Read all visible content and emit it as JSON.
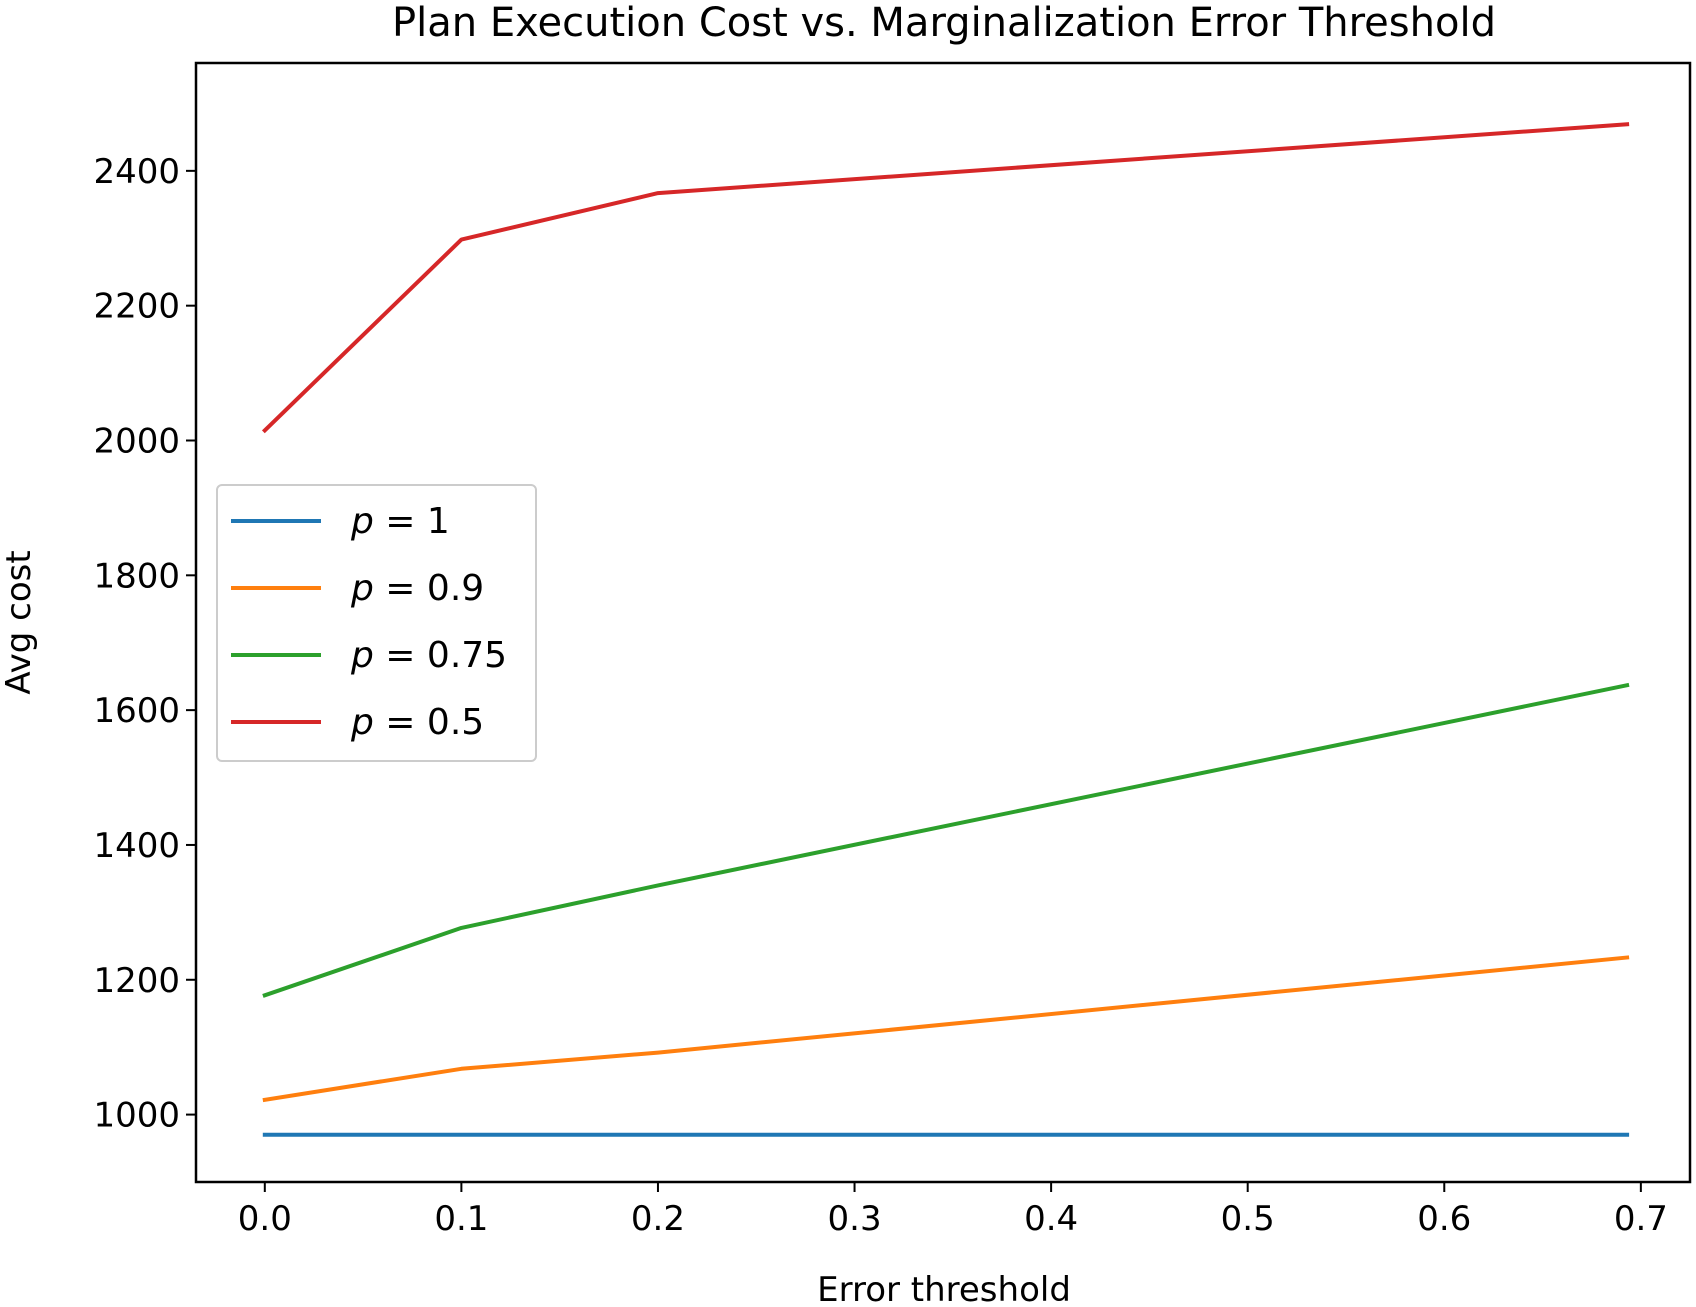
{
  "chart_data": {
    "type": "line",
    "title": "Plan Execution Cost vs. Marginalization Error Threshold",
    "xlabel": "Error threshold",
    "ylabel": "Avg cost",
    "xlim": [
      -0.035,
      0.725
    ],
    "ylim": [
      900,
      2560
    ],
    "xticks": [
      0.0,
      0.1,
      0.2,
      0.3,
      0.4,
      0.5,
      0.6,
      0.7
    ],
    "xtick_labels": [
      "0.0",
      "0.1",
      "0.2",
      "0.3",
      "0.4",
      "0.5",
      "0.6",
      "0.7"
    ],
    "yticks": [
      1000,
      1200,
      1400,
      1600,
      1800,
      2000,
      2200,
      2400
    ],
    "ytick_labels": [
      "1000",
      "1200",
      "1400",
      "1600",
      "1800",
      "2000",
      "2200",
      "2400"
    ],
    "grid": false,
    "legend_position": "center-left",
    "x": [
      0.0,
      0.1,
      0.2,
      0.693
    ],
    "series": [
      {
        "name": "p = 1",
        "legend_var": "p",
        "legend_rest": " = 1",
        "color": "#1f77b4",
        "values": [
          970,
          970,
          970,
          970
        ]
      },
      {
        "name": "p = 0.9",
        "legend_var": "p",
        "legend_rest": " = 0.9",
        "color": "#ff7f0e",
        "values": [
          1022,
          1068,
          1092,
          1233
        ]
      },
      {
        "name": "p = 0.75",
        "legend_var": "p",
        "legend_rest": " = 0.75",
        "color": "#2ca02c",
        "values": [
          1177,
          1277,
          1340,
          1637
        ]
      },
      {
        "name": "p = 0.5",
        "legend_var": "p",
        "legend_rest": " = 0.5",
        "color": "#d62728",
        "values": [
          2015,
          2298,
          2367,
          2469
        ]
      }
    ]
  }
}
